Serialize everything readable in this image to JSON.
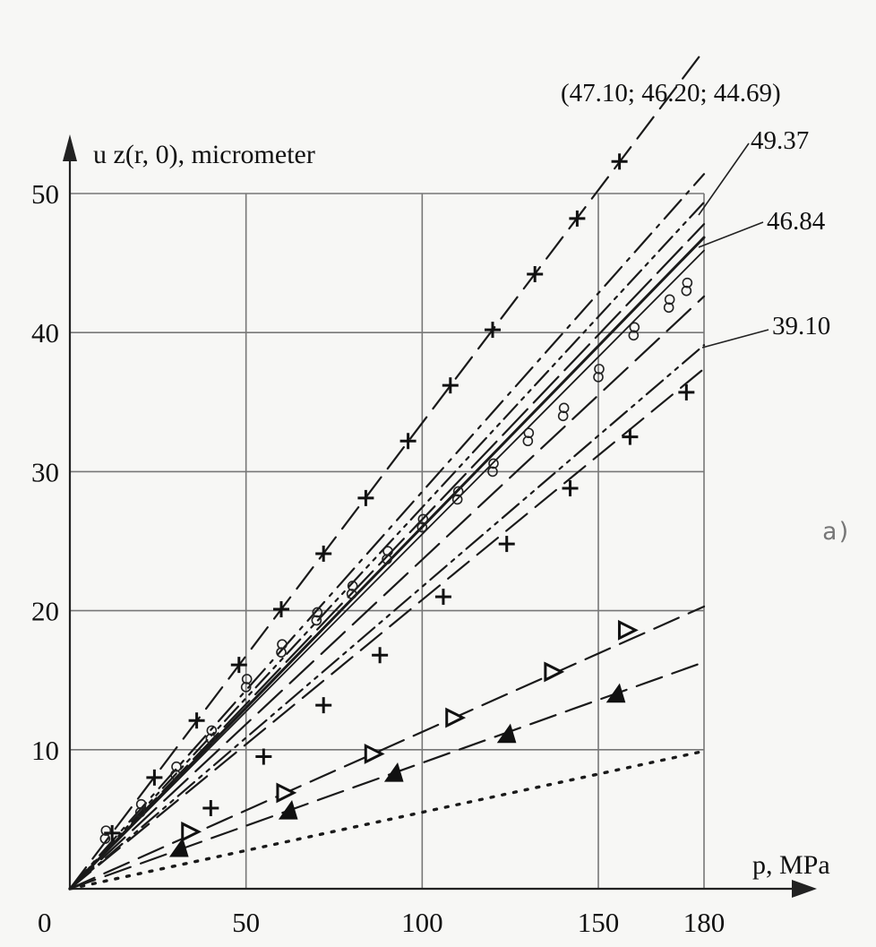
{
  "chart_data": {
    "type": "line",
    "title": "",
    "xlabel": "p, MPa",
    "ylabel": "u z(r, 0), micrometer",
    "xlim": [
      0,
      180
    ],
    "ylim": [
      0,
      50
    ],
    "x_ticks": [
      50,
      100,
      150,
      180
    ],
    "y_ticks": [
      10,
      20,
      30,
      40,
      50
    ],
    "origin_label": "0",
    "grid": true,
    "panel_label": "a)",
    "annotations": [
      {
        "text": "(47.10; 46.20; 44.69)"
      },
      {
        "text": "49.37"
      },
      {
        "text": "46.84"
      },
      {
        "text": "39.10"
      }
    ],
    "series": [
      {
        "style": "dash-cross",
        "x": [
          0,
          180
        ],
        "y": [
          0,
          60.3
        ],
        "markers": {
          "x": [
            12,
            24,
            36,
            48,
            60,
            72,
            84,
            96,
            108,
            120,
            132,
            144,
            156
          ],
          "y": [
            4.0,
            8.0,
            12.1,
            16.1,
            20.1,
            24.1,
            28.1,
            32.2,
            36.2,
            40.2,
            44.2,
            48.2,
            52.3
          ]
        }
      },
      {
        "style": "dash-dot",
        "x": [
          0,
          180
        ],
        "y": [
          0,
          51.4
        ]
      },
      {
        "style": "dash-dot-dot",
        "x": [
          0,
          180
        ],
        "y": [
          0,
          49.37
        ]
      },
      {
        "style": "long-dash",
        "x": [
          0,
          180
        ],
        "y": [
          0,
          47.8
        ]
      },
      {
        "style": "solid",
        "x": [
          0,
          180
        ],
        "y": [
          0,
          46.84
        ]
      },
      {
        "style": "solid-thin",
        "x": [
          0,
          180
        ],
        "y": [
          0,
          45.9
        ]
      },
      {
        "style": "circles",
        "x": [
          10,
          20,
          30,
          40,
          50,
          60,
          70,
          80,
          90,
          100,
          110,
          120,
          130,
          140,
          150,
          160,
          170,
          175
        ],
        "y": [
          3.6,
          5.5,
          8.2,
          10.8,
          14.5,
          17.0,
          19.3,
          21.2,
          23.7,
          26.0,
          28.0,
          30.0,
          32.2,
          34.0,
          36.8,
          39.8,
          41.8,
          43.0
        ]
      },
      {
        "style": "long-dash-2",
        "x": [
          0,
          180
        ],
        "y": [
          0,
          42.6
        ]
      },
      {
        "style": "dash-dot-dot-2",
        "x": [
          0,
          180
        ],
        "y": [
          0,
          39.1
        ]
      },
      {
        "style": "dash-cross-2",
        "x": [
          0,
          180
        ],
        "y": [
          0,
          37.4
        ],
        "markers": {
          "x": [
            40,
            55,
            72,
            88,
            106,
            124,
            142,
            159,
            175
          ],
          "y": [
            5.8,
            9.5,
            13.2,
            16.8,
            21.0,
            24.8,
            28.8,
            32.5,
            35.7
          ]
        }
      },
      {
        "style": "dash-open-triangle",
        "x": [
          0,
          180
        ],
        "y": [
          0,
          20.3
        ],
        "markers": {
          "x": [
            34,
            61,
            86,
            109,
            137,
            158
          ],
          "y": [
            4.1,
            6.9,
            9.7,
            12.3,
            15.6,
            18.6
          ]
        }
      },
      {
        "style": "dash-filled-triangle",
        "x": [
          0,
          180
        ],
        "y": [
          0,
          16.3
        ],
        "markers": {
          "x": [
            31,
            62,
            92,
            124,
            155
          ],
          "y": [
            2.9,
            5.6,
            8.3,
            11.1,
            14.0
          ]
        }
      },
      {
        "style": "dotted",
        "x": [
          0,
          180
        ],
        "y": [
          0,
          9.9
        ]
      }
    ]
  }
}
